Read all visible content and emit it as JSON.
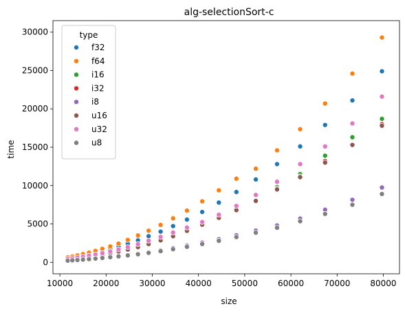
{
  "chart_data": {
    "type": "scatter",
    "title": "alg-selectionSort-c",
    "xlabel": "size",
    "ylabel": "time",
    "xlim": [
      8500,
      83500
    ],
    "ylim": [
      -1500,
      31500
    ],
    "x_ticks": [
      10000,
      20000,
      30000,
      40000,
      50000,
      60000,
      70000,
      80000
    ],
    "y_ticks": [
      0,
      5000,
      10000,
      15000,
      20000,
      25000,
      30000
    ],
    "grid": false,
    "legend_title": "type",
    "legend_position": "top-left",
    "x": [
      11700,
      12700,
      13800,
      15000,
      16300,
      17700,
      19200,
      20900,
      22700,
      24700,
      26900,
      29200,
      31800,
      34500,
      37500,
      40800,
      44400,
      48200,
      52400,
      57000,
      62000,
      67400,
      73300,
      79700
    ],
    "series": [
      {
        "name": "f32",
        "color": "#1f77b4",
        "values": [
          560,
          650,
          760,
          900,
          1060,
          1250,
          1470,
          1720,
          2040,
          2420,
          2870,
          3400,
          4000,
          4720,
          5570,
          6560,
          7780,
          9160,
          10800,
          12800,
          15100,
          17900,
          21100,
          24900
        ]
      },
      {
        "name": "f64",
        "color": "#ff7f0e",
        "values": [
          650,
          760,
          900,
          1070,
          1260,
          1490,
          1760,
          2070,
          2440,
          2920,
          3500,
          4120,
          4870,
          5730,
          6740,
          7950,
          9380,
          10900,
          12200,
          14600,
          17350,
          20700,
          24600,
          29300
        ]
      },
      {
        "name": "i16",
        "color": "#2ca02c",
        "values": [
          390,
          460,
          540,
          640,
          750,
          890,
          1050,
          1240,
          1460,
          1730,
          2050,
          2450,
          2950,
          3500,
          4200,
          5000,
          5900,
          6900,
          8100,
          9800,
          11500,
          13900,
          16300,
          18700
        ]
      },
      {
        "name": "i32",
        "color": "#d62728",
        "values": [
          380,
          450,
          530,
          620,
          730,
          860,
          1020,
          1200,
          1420,
          1680,
          2000,
          2400,
          2900,
          3450,
          4150,
          4950,
          5850,
          6850,
          8050,
          9600,
          11200,
          13200,
          15300,
          18000
        ]
      },
      {
        "name": "i8",
        "color": "#9467bd",
        "values": [
          230,
          270,
          320,
          370,
          430,
          510,
          600,
          700,
          820,
          960,
          1120,
          1320,
          1560,
          1850,
          2180,
          2560,
          3010,
          3530,
          4130,
          4800,
          5700,
          6850,
          8150,
          9750
        ]
      },
      {
        "name": "u16",
        "color": "#8c564b",
        "values": [
          370,
          440,
          520,
          610,
          720,
          850,
          1000,
          1180,
          1400,
          1660,
          1980,
          2380,
          2860,
          3400,
          4100,
          4900,
          5800,
          6800,
          8000,
          9500,
          11100,
          13000,
          15300,
          17800
        ]
      },
      {
        "name": "u32",
        "color": "#e377c2",
        "values": [
          450,
          530,
          620,
          730,
          860,
          1010,
          1190,
          1410,
          1670,
          1980,
          2360,
          2810,
          3310,
          3880,
          4530,
          5250,
          6200,
          7350,
          8780,
          10500,
          12800,
          15100,
          18100,
          21600
        ]
      },
      {
        "name": "u8",
        "color": "#7f7f7f",
        "values": [
          220,
          260,
          300,
          350,
          410,
          480,
          560,
          660,
          770,
          900,
          1050,
          1230,
          1450,
          1710,
          2020,
          2380,
          2800,
          3290,
          3860,
          4500,
          5350,
          6300,
          7500,
          8900
        ]
      }
    ]
  }
}
